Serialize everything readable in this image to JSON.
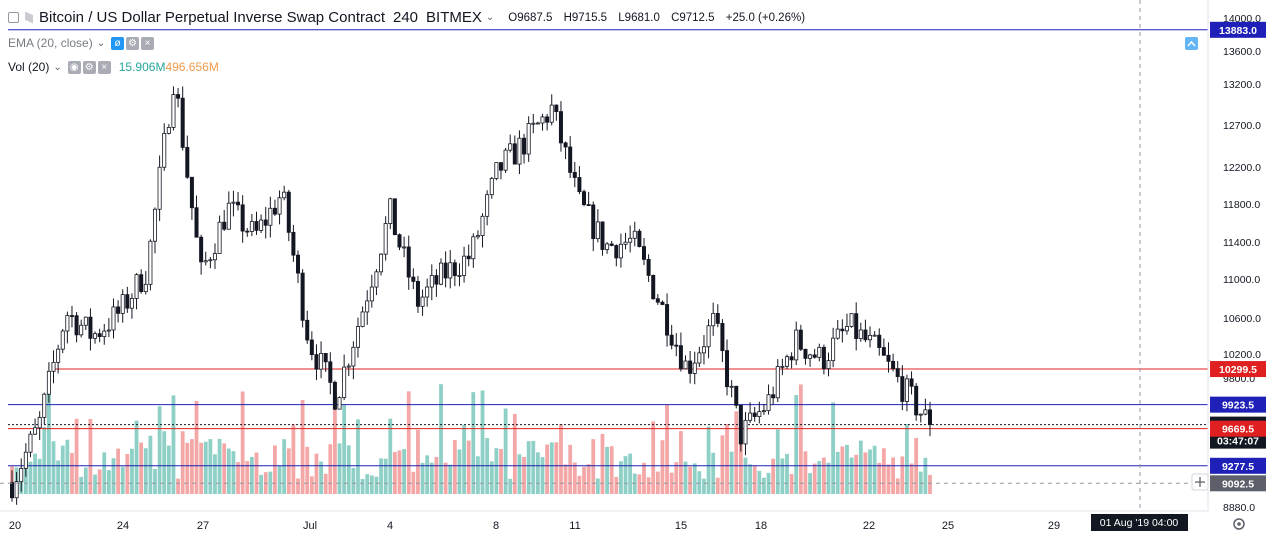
{
  "legend": {
    "title": "Bitcoin / US Dollar Perpetual Inverse Swap Contract",
    "interval": "240",
    "exchange": "BITMEX",
    "open": "O9687.5",
    "high": "H9715.5",
    "low": "L9681.0",
    "close": "C9712.5",
    "change": "+25.0 (+0.26%)",
    "ema_label": "EMA (20, close)",
    "vol_label": "Vol (20)",
    "vol_value_1": "15.906M",
    "vol_value_2": "496.656M"
  },
  "icons": {
    "collapse": "collapse-square-icon",
    "flag": "flag-icon",
    "eye": "eye-off-icon",
    "settings": "gear-icon",
    "close": "close-icon",
    "settings_cog": "settings-cog-icon",
    "crosshair": "crosshair-plus-icon",
    "autoscale": "autoscale-icon"
  },
  "price_axis": {
    "ticks": [
      "14000.0",
      "13600.0",
      "13200.0",
      "12700.0",
      "12200.0",
      "11800.0",
      "11400.0",
      "11000.0",
      "10600.0",
      "10200.0",
      "9800.0",
      "8880.0"
    ]
  },
  "price_labels": [
    {
      "value": "13883.0",
      "price": 13883.0,
      "color": "#1e20b8"
    },
    {
      "value": "10299.5",
      "price": 10299.5,
      "color": "#e02020"
    },
    {
      "value": "9923.5",
      "price": 9923.5,
      "color": "#1e20b8"
    },
    {
      "value": "9712.5",
      "price": 9712.5,
      "color": "#131722"
    },
    {
      "value": "03:47:07",
      "price": 9635.0,
      "color": "#131722"
    },
    {
      "value": "9669.5",
      "price": 9669.5,
      "color": "#e02020"
    },
    {
      "value": "9277.5",
      "price": 9277.5,
      "color": "#1e20b8"
    },
    {
      "value": "9092.5",
      "price": 9092.5,
      "color": "#5d606b"
    }
  ],
  "time_axis": {
    "ticks": [
      "20",
      "24",
      "27",
      "Jul",
      "4",
      "8",
      "11",
      "15",
      "18",
      "22",
      "25",
      "29"
    ],
    "crosshair_label": "01 Aug '19   04:00"
  },
  "chart_data": {
    "type": "candlestick",
    "title": "Bitcoin / US Dollar Perpetual Inverse Swap Contract",
    "interval": "240",
    "exchange": "BITMEX",
    "price_range": [
      8800,
      14050
    ],
    "horizontal_lines": [
      {
        "price": 13883.0,
        "color": "#1e20b8"
      },
      {
        "price": 10299.5,
        "color": "#e02020"
      },
      {
        "price": 9923.5,
        "color": "#1e20b8"
      },
      {
        "price": 9669.5,
        "color": "#e02020"
      },
      {
        "price": 9277.5,
        "color": "#1e20b8"
      }
    ],
    "last_price": 9712.5,
    "crosshair_price": 9092.5,
    "close_path": [
      [
        "20",
        9100
      ],
      [
        "21",
        9700
      ],
      [
        "22",
        10900
      ],
      [
        "23",
        10650
      ],
      [
        "24",
        10900
      ],
      [
        "25",
        11350
      ],
      [
        "26",
        13400
      ],
      [
        "27",
        11300
      ],
      [
        "28",
        12000
      ],
      [
        "29",
        11700
      ],
      [
        "30",
        12150
      ],
      [
        "Jul",
        10600
      ],
      [
        "2",
        10000
      ],
      [
        "3",
        10950
      ],
      [
        "4",
        11950
      ],
      [
        "5",
        11000
      ],
      [
        "6",
        11300
      ],
      [
        "7",
        11500
      ],
      [
        "8",
        12400
      ],
      [
        "9",
        12700
      ],
      [
        "10",
        13050
      ],
      [
        "11",
        12050
      ],
      [
        "12",
        11600
      ],
      [
        "13",
        11650
      ],
      [
        "14",
        11000
      ],
      [
        "15",
        10300
      ],
      [
        "16",
        10800
      ],
      [
        "17",
        9600
      ],
      [
        "18",
        9950
      ],
      [
        "19",
        10600
      ],
      [
        "20",
        10400
      ],
      [
        "21",
        10750
      ],
      [
        "22",
        10500
      ],
      [
        "23",
        10100
      ],
      [
        "24",
        9712.5
      ]
    ]
  }
}
